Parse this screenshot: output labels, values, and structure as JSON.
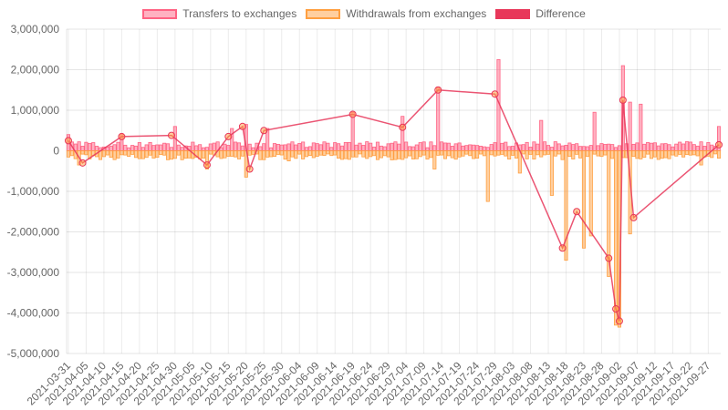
{
  "chart_data": {
    "type": "bar",
    "legend_position": "top",
    "grid": true,
    "ylim": [
      -5000000,
      3000000
    ],
    "y_ticks": [
      "3,000,000",
      "2,000,000",
      "1,000,000",
      "0",
      "-1,000,000",
      "-2,000,000",
      "-3,000,000",
      "-4,000,000",
      "-5,000,000"
    ],
    "x_tick_labels": [
      "2021-03-31",
      "2021-04-05",
      "2021-04-10",
      "2021-04-15",
      "2021-04-20",
      "2021-04-25",
      "2021-04-30",
      "2021-05-05",
      "2021-05-10",
      "2021-05-15",
      "2021-05-20",
      "2021-05-25",
      "2021-05-30",
      "2021-06-04",
      "2021-06-09",
      "2021-06-14",
      "2021-06-19",
      "2021-06-24",
      "2021-06-29",
      "2021-07-04",
      "2021-07-09",
      "2021-07-14",
      "2021-07-19",
      "2021-07-24",
      "2021-07-29",
      "2021-08-03",
      "2021-08-08",
      "2021-08-13",
      "2021-08-18",
      "2021-08-23",
      "2021-08-28",
      "2021-09-02",
      "2021-09-07",
      "2021-09-12",
      "2021-09-17",
      "2021-09-22",
      "2021-09-27"
    ],
    "x_start": "2021-03-31",
    "x_end": "2021-09-30",
    "series": [
      {
        "name": "Transfers to exchanges",
        "color": "#ff6384",
        "fill": "rgba(255,99,132,0.5)",
        "points": [
          [
            "2021-03-31",
            400000
          ],
          [
            "2021-04-15",
            400000
          ],
          [
            "2021-04-30",
            600000
          ],
          [
            "2021-05-16",
            550000
          ],
          [
            "2021-05-20",
            650000
          ],
          [
            "2021-05-26",
            550000
          ],
          [
            "2021-06-19",
            950000
          ],
          [
            "2021-07-03",
            850000
          ],
          [
            "2021-07-13",
            1550000
          ],
          [
            "2021-07-30",
            2250000
          ],
          [
            "2021-08-11",
            750000
          ],
          [
            "2021-08-26",
            950000
          ],
          [
            "2021-09-03",
            2100000
          ],
          [
            "2021-09-05",
            1200000
          ],
          [
            "2021-09-08",
            1150000
          ],
          [
            "2021-09-30",
            600000
          ]
        ],
        "baseline": 150000
      },
      {
        "name": "Withdrawals from exchanges",
        "color": "#ff9f40",
        "fill": "rgba(255,159,64,0.5)",
        "points": [
          [
            "2021-04-03",
            -350000
          ],
          [
            "2021-05-09",
            -450000
          ],
          [
            "2021-05-20",
            -650000
          ],
          [
            "2021-06-01",
            -250000
          ],
          [
            "2021-07-12",
            -450000
          ],
          [
            "2021-07-27",
            -1250000
          ],
          [
            "2021-08-05",
            -550000
          ],
          [
            "2021-08-14",
            -1100000
          ],
          [
            "2021-08-18",
            -2700000
          ],
          [
            "2021-08-23",
            -2400000
          ],
          [
            "2021-08-25",
            -2100000
          ],
          [
            "2021-08-30",
            -3100000
          ],
          [
            "2021-09-01",
            -4300000
          ],
          [
            "2021-09-02",
            -4350000
          ],
          [
            "2021-09-05",
            -2050000
          ],
          [
            "2021-09-25",
            -350000
          ]
        ],
        "baseline": -150000
      },
      {
        "name": "Difference",
        "color": "#e8375a",
        "fill": "#e8375a",
        "points": [
          [
            "2021-03-31",
            250000
          ],
          [
            "2021-04-04",
            -300000
          ],
          [
            "2021-04-15",
            350000
          ],
          [
            "2021-04-29",
            380000
          ],
          [
            "2021-05-09",
            -350000
          ],
          [
            "2021-05-15",
            350000
          ],
          [
            "2021-05-19",
            600000
          ],
          [
            "2021-05-21",
            -450000
          ],
          [
            "2021-05-25",
            500000
          ],
          [
            "2021-06-19",
            900000
          ],
          [
            "2021-07-03",
            580000
          ],
          [
            "2021-07-13",
            1500000
          ],
          [
            "2021-07-29",
            1400000
          ],
          [
            "2021-08-17",
            -2400000
          ],
          [
            "2021-08-21",
            -1500000
          ],
          [
            "2021-08-30",
            -2650000
          ],
          [
            "2021-09-01",
            -3900000
          ],
          [
            "2021-09-02",
            -4200000
          ],
          [
            "2021-09-03",
            1250000
          ],
          [
            "2021-09-06",
            -1650000
          ],
          [
            "2021-09-30",
            150000
          ]
        ]
      }
    ]
  }
}
